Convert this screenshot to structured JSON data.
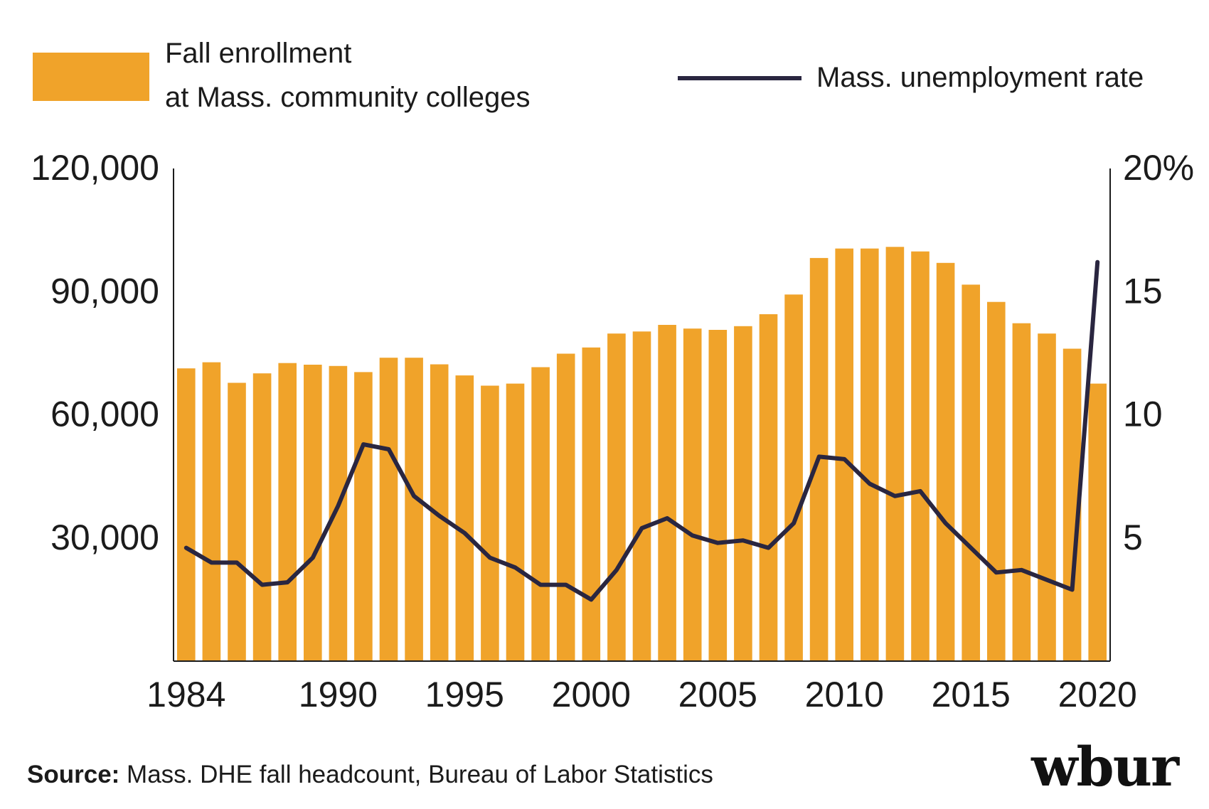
{
  "legend": {
    "bar_label_line1": "Fall enrollment",
    "bar_label_line2": "at Mass. community colleges",
    "line_label": "Mass. unemployment rate"
  },
  "source": {
    "label": "Source:",
    "text": " Mass. DHE fall headcount, Bureau of Labor Statistics"
  },
  "logo": "wbur",
  "colors": {
    "bar": "#f0a32a",
    "line": "#2a2640",
    "axis": "#1b1b1b"
  },
  "chart_data": {
    "type": "bar+line",
    "title": "",
    "xlabel": "",
    "ylabel_left": "",
    "ylabel_right": "",
    "x": [
      1984,
      1985,
      1986,
      1987,
      1988,
      1989,
      1990,
      1991,
      1992,
      1993,
      1994,
      1995,
      1996,
      1997,
      1998,
      1999,
      2000,
      2001,
      2002,
      2003,
      2004,
      2005,
      2006,
      2007,
      2008,
      2009,
      2010,
      2011,
      2012,
      2013,
      2014,
      2015,
      2016,
      2017,
      2018,
      2019,
      2020
    ],
    "x_tick_labels": [
      "1984",
      "1990",
      "1995",
      "2000",
      "2005",
      "2010",
      "2015",
      "2020"
    ],
    "y_left_ticks": [
      "120,000",
      "90,000",
      "60,000",
      "30,000"
    ],
    "y_left_tick_values": [
      120000,
      90000,
      60000,
      30000
    ],
    "y_left_lim": [
      0,
      120000
    ],
    "y_right_ticks": [
      "20%",
      "15",
      "10",
      "5"
    ],
    "y_right_tick_values": [
      20,
      15,
      10,
      5
    ],
    "y_right_lim": [
      0,
      20
    ],
    "series": [
      {
        "name": "Fall enrollment at Mass. community colleges",
        "type": "bar",
        "axis": "left",
        "values": [
          71300,
          72800,
          67800,
          70100,
          72600,
          72200,
          71900,
          70400,
          73900,
          73900,
          72300,
          69600,
          67100,
          67600,
          71600,
          74900,
          76400,
          79800,
          80300,
          81900,
          81000,
          80700,
          81600,
          84500,
          89300,
          98200,
          100500,
          100500,
          100900,
          99800,
          97000,
          91700,
          87500,
          82300,
          79800,
          76100,
          67600
        ]
      },
      {
        "name": "Mass. unemployment rate",
        "type": "line",
        "axis": "right",
        "values": [
          4.6,
          4.0,
          4.0,
          3.1,
          3.2,
          4.2,
          6.3,
          8.8,
          8.6,
          6.7,
          5.9,
          5.2,
          4.2,
          3.8,
          3.1,
          3.1,
          2.5,
          3.7,
          5.4,
          5.8,
          5.1,
          4.8,
          4.9,
          4.6,
          5.6,
          8.3,
          8.2,
          7.2,
          6.7,
          6.9,
          5.6,
          4.6,
          3.6,
          3.7,
          3.3,
          2.9,
          16.2
        ]
      }
    ],
    "grid": false,
    "legend_position": "top"
  }
}
